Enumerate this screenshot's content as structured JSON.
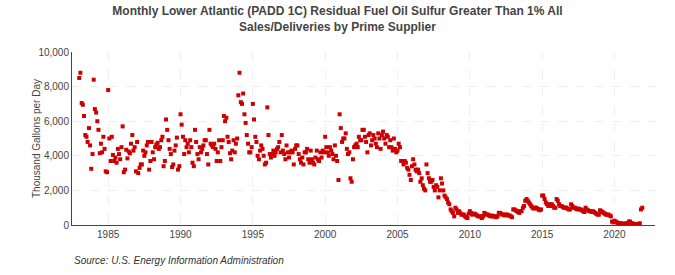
{
  "chart_data": {
    "type": "scatter",
    "title": "Monthly Lower Atlantic (PADD 1C) Residual Fuel Oil Sulfur Greater Than 1% All\nSales/Deliveries by Prime Supplier",
    "ylabel": "Thousand Gallons per Day",
    "annotations": [
      "Source: U.S. Energy Information Administration"
    ],
    "color": "#CC0000",
    "marker": "square",
    "grid": true,
    "xlim": [
      1982.5,
      2022.8
    ],
    "xticks": [
      1985,
      1990,
      1995,
      2000,
      2005,
      2010,
      2015,
      2020
    ],
    "ylim": [
      0,
      10000
    ],
    "yticks": [
      0,
      {
        "value": 2000,
        "label": "2,000"
      },
      {
        "value": 4000,
        "label": "4,000"
      },
      {
        "value": 6000,
        "label": "6,000"
      },
      {
        "value": 8000,
        "label": "8,000"
      },
      {
        "value": 10000,
        "label": "10,000"
      }
    ],
    "x": [
      1983.0,
      1983.08,
      1983.17,
      1983.25,
      1983.33,
      1983.42,
      1983.5,
      1983.58,
      1983.67,
      1983.75,
      1983.83,
      1983.92,
      1984.0,
      1984.08,
      1984.17,
      1984.25,
      1984.33,
      1984.42,
      1984.5,
      1984.58,
      1984.67,
      1984.75,
      1984.83,
      1984.92,
      1985.0,
      1985.08,
      1985.17,
      1985.25,
      1985.33,
      1985.42,
      1985.5,
      1985.58,
      1985.67,
      1985.75,
      1985.83,
      1985.92,
      1986.0,
      1986.08,
      1986.17,
      1986.25,
      1986.33,
      1986.42,
      1986.5,
      1986.58,
      1986.67,
      1986.75,
      1986.83,
      1986.92,
      1987.0,
      1987.08,
      1987.17,
      1987.25,
      1987.33,
      1987.42,
      1987.5,
      1987.58,
      1987.67,
      1987.75,
      1987.83,
      1987.92,
      1988.0,
      1988.08,
      1988.17,
      1988.25,
      1988.33,
      1988.42,
      1988.5,
      1988.58,
      1988.67,
      1988.75,
      1988.83,
      1988.92,
      1989.0,
      1989.08,
      1989.17,
      1989.25,
      1989.33,
      1989.42,
      1989.5,
      1989.58,
      1989.67,
      1989.75,
      1989.83,
      1989.92,
      1990.0,
      1990.08,
      1990.17,
      1990.25,
      1990.33,
      1990.42,
      1990.5,
      1990.58,
      1990.67,
      1990.75,
      1990.83,
      1990.92,
      1991.0,
      1991.08,
      1991.17,
      1991.25,
      1991.33,
      1991.42,
      1991.5,
      1991.58,
      1991.67,
      1991.75,
      1991.83,
      1991.92,
      1992.0,
      1992.08,
      1992.17,
      1992.25,
      1992.33,
      1992.42,
      1992.5,
      1992.58,
      1992.67,
      1992.75,
      1992.83,
      1992.92,
      1993.0,
      1993.08,
      1993.17,
      1993.25,
      1993.33,
      1993.42,
      1993.5,
      1993.58,
      1993.67,
      1993.75,
      1993.83,
      1993.92,
      1994.0,
      1994.08,
      1994.17,
      1994.25,
      1994.33,
      1994.42,
      1994.5,
      1994.58,
      1994.67,
      1994.75,
      1994.83,
      1994.92,
      1995.0,
      1995.08,
      1995.17,
      1995.25,
      1995.33,
      1995.42,
      1995.5,
      1995.58,
      1995.67,
      1995.75,
      1995.83,
      1995.92,
      1996.0,
      1996.08,
      1996.17,
      1996.25,
      1996.33,
      1996.42,
      1996.5,
      1996.58,
      1996.67,
      1996.75,
      1996.83,
      1996.92,
      1997.0,
      1997.08,
      1997.17,
      1997.25,
      1997.33,
      1997.42,
      1997.5,
      1997.58,
      1997.67,
      1997.75,
      1997.83,
      1997.92,
      1998.0,
      1998.08,
      1998.17,
      1998.25,
      1998.33,
      1998.42,
      1998.5,
      1998.58,
      1998.67,
      1998.75,
      1998.83,
      1998.92,
      1999.0,
      1999.08,
      1999.17,
      1999.25,
      1999.33,
      1999.42,
      1999.5,
      1999.58,
      1999.67,
      1999.75,
      1999.83,
      1999.92,
      2000.0,
      2000.08,
      2000.17,
      2000.25,
      2000.33,
      2000.42,
      2000.5,
      2000.58,
      2000.67,
      2000.75,
      2000.83,
      2000.92,
      2001.0,
      2001.08,
      2001.17,
      2001.25,
      2001.33,
      2001.42,
      2001.5,
      2001.58,
      2001.67,
      2001.75,
      2001.83,
      2001.92,
      2002.0,
      2002.08,
      2002.17,
      2002.25,
      2002.33,
      2002.42,
      2002.5,
      2002.58,
      2002.67,
      2002.75,
      2002.83,
      2002.92,
      2003.0,
      2003.08,
      2003.17,
      2003.25,
      2003.33,
      2003.42,
      2003.5,
      2003.58,
      2003.67,
      2003.75,
      2003.83,
      2003.92,
      2004.0,
      2004.08,
      2004.17,
      2004.25,
      2004.33,
      2004.42,
      2004.5,
      2004.58,
      2004.67,
      2004.75,
      2004.83,
      2004.92,
      2005.0,
      2005.08,
      2005.17,
      2005.25,
      2005.33,
      2005.42,
      2005.5,
      2005.58,
      2005.67,
      2005.75,
      2005.83,
      2005.92,
      2006.0,
      2006.08,
      2006.17,
      2006.25,
      2006.33,
      2006.42,
      2006.5,
      2006.58,
      2006.67,
      2006.75,
      2006.83,
      2006.92,
      2007.0,
      2007.08,
      2007.17,
      2007.25,
      2007.33,
      2007.42,
      2007.5,
      2007.58,
      2007.67,
      2007.75,
      2007.83,
      2007.92,
      2008.0,
      2008.08,
      2008.17,
      2008.25,
      2008.33,
      2008.42,
      2008.5,
      2008.58,
      2008.67,
      2008.75,
      2008.83,
      2008.92,
      2009.0,
      2009.08,
      2009.17,
      2009.25,
      2009.33,
      2009.42,
      2009.5,
      2009.58,
      2009.67,
      2009.75,
      2009.83,
      2009.92,
      2010.0,
      2010.08,
      2010.17,
      2010.25,
      2010.33,
      2010.42,
      2010.5,
      2010.58,
      2010.67,
      2010.75,
      2010.83,
      2010.92,
      2011.0,
      2011.08,
      2011.17,
      2011.25,
      2011.33,
      2011.42,
      2011.5,
      2011.58,
      2011.67,
      2011.75,
      2011.83,
      2011.92,
      2012.0,
      2012.08,
      2012.17,
      2012.25,
      2012.33,
      2012.42,
      2012.5,
      2012.58,
      2012.67,
      2012.75,
      2012.83,
      2012.92,
      2013.0,
      2013.08,
      2013.17,
      2013.25,
      2013.33,
      2013.42,
      2013.5,
      2013.58,
      2013.67,
      2013.75,
      2013.83,
      2013.92,
      2014.0,
      2014.08,
      2014.17,
      2014.25,
      2014.33,
      2014.42,
      2014.5,
      2014.58,
      2014.67,
      2014.75,
      2014.83,
      2014.92,
      2015.0,
      2015.08,
      2015.17,
      2015.25,
      2015.33,
      2015.42,
      2015.5,
      2015.58,
      2015.67,
      2015.75,
      2015.83,
      2015.92,
      2016.0,
      2016.08,
      2016.17,
      2016.25,
      2016.33,
      2016.42,
      2016.5,
      2016.58,
      2016.67,
      2016.75,
      2016.83,
      2016.92,
      2017.0,
      2017.08,
      2017.17,
      2017.25,
      2017.33,
      2017.42,
      2017.5,
      2017.58,
      2017.67,
      2017.75,
      2017.83,
      2017.92,
      2018.0,
      2018.08,
      2018.17,
      2018.25,
      2018.33,
      2018.42,
      2018.5,
      2018.58,
      2018.67,
      2018.75,
      2018.83,
      2018.92,
      2019.0,
      2019.08,
      2019.17,
      2019.25,
      2019.33,
      2019.42,
      2019.5,
      2019.58,
      2019.67,
      2019.75,
      2019.83,
      2019.92,
      2020.0,
      2020.08,
      2020.17,
      2020.25,
      2020.33,
      2020.42,
      2020.5,
      2020.58,
      2020.67,
      2020.75,
      2020.83,
      2020.92,
      2021.0,
      2021.08,
      2021.17,
      2021.25,
      2021.33,
      2021.42,
      2021.5,
      2021.58,
      2021.67,
      2021.75,
      2021.83,
      2021.92
    ],
    "values": [
      8500,
      8800,
      7050,
      6950,
      6300,
      5200,
      5100,
      4800,
      5600,
      4600,
      3250,
      4100,
      8400,
      6700,
      6500,
      6000,
      5500,
      4150,
      4700,
      4200,
      5100,
      4400,
      3100,
      3050,
      7800,
      5000,
      3700,
      5100,
      4050,
      3700,
      3900,
      3600,
      4400,
      4100,
      3800,
      4500,
      5700,
      3050,
      3200,
      4350,
      3850,
      4250,
      4150,
      4700,
      5200,
      4300,
      4500,
      3100,
      4800,
      3000,
      3300,
      3500,
      3500,
      4300,
      4000,
      4200,
      4600,
      4800,
      3200,
      3700,
      4800,
      4200,
      3800,
      4500,
      4650,
      4750,
      4400,
      4500,
      4900,
      5100,
      3400,
      3700,
      6100,
      5500,
      4900,
      4400,
      4100,
      3350,
      3500,
      4300,
      4600,
      5050,
      3200,
      3400,
      6400,
      5800,
      5100,
      4100,
      4900,
      4500,
      4700,
      4200,
      4900,
      4500,
      3600,
      3400,
      5500,
      4800,
      4100,
      3800,
      4500,
      4200,
      4400,
      4600,
      4900,
      4900,
      4100,
      3500,
      5500,
      4700,
      4600,
      4500,
      4700,
      4400,
      3700,
      4200,
      4900,
      3700,
      4500,
      4900,
      6300,
      6000,
      6200,
      5100,
      4800,
      4150,
      3800,
      4300,
      4900,
      4200,
      4700,
      5000,
      7500,
      8800,
      7100,
      7000,
      7600,
      6400,
      5900,
      5200,
      4700,
      4200,
      4200,
      4500,
      7000,
      6100,
      5100,
      4800,
      4000,
      3800,
      4300,
      4600,
      4400,
      4000,
      3500,
      3600,
      6800,
      5200,
      4100,
      3900,
      4100,
      4300,
      4000,
      4200,
      4400,
      4500,
      4800,
      4200,
      5200,
      4300,
      4100,
      3800,
      4600,
      4200,
      3900,
      4200,
      4300,
      4200,
      3500,
      4400,
      4600,
      4600,
      4100,
      3800,
      3600,
      3900,
      3500,
      4200,
      4200,
      4400,
      3800,
      3600,
      4300,
      3800,
      3600,
      3500,
      3900,
      4300,
      3800,
      3700,
      4200,
      3900,
      4300,
      4200,
      5100,
      4500,
      4200,
      4000,
      4500,
      4300,
      4100,
      3800,
      4600,
      4000,
      3700,
      2600,
      6400,
      5600,
      4800,
      5000,
      5000,
      5300,
      4400,
      4100,
      4200,
      2700,
      2500,
      3800,
      4500,
      4600,
      4700,
      4500,
      5100,
      4900,
      4900,
      5500,
      5500,
      5100,
      4800,
      4200,
      5200,
      5300,
      4600,
      4900,
      5200,
      5000,
      4700,
      4500,
      5300,
      5000,
      4400,
      5200,
      5400,
      5000,
      4700,
      5200,
      5100,
      4500,
      4900,
      4500,
      4300,
      5000,
      4400,
      4200,
      4300,
      4700,
      4500,
      3700,
      3700,
      3500,
      3700,
      3600,
      3300,
      3200,
      2900,
      2600,
      3400,
      3800,
      3500,
      3200,
      3100,
      3200,
      3000,
      2500,
      2700,
      2300,
      2100,
      2000,
      3500,
      3000,
      2700,
      2500,
      2500,
      2600,
      2200,
      2000,
      2300,
      2200,
      1600,
      2000,
      2700,
      2400,
      2000,
      1700,
      1600,
      1500,
      1300,
      1200,
      900,
      800,
      700,
      500,
      1000,
      900,
      700,
      800,
      700,
      600,
      600,
      600,
      500,
      450,
      400,
      650,
      800,
      700,
      600,
      650,
      650,
      600,
      550,
      500,
      500,
      500,
      400,
      500,
      700,
      650,
      600,
      600,
      550,
      500,
      550,
      500,
      500,
      500,
      450,
      500,
      700,
      700,
      650,
      600,
      600,
      550,
      600,
      600,
      550,
      550,
      500,
      450,
      900,
      900,
      850,
      800,
      750,
      700,
      800,
      800,
      1000,
      1100,
      1400,
      1500,
      1400,
      1300,
      1200,
      1100,
      1000,
      950,
      1000,
      1000,
      950,
      900,
      850,
      900,
      1700,
      1700,
      1500,
      1300,
      1200,
      1100,
      1200,
      1100,
      1200,
      1100,
      1000,
      1000,
      1500,
      1400,
      1200,
      1100,
      1100,
      1050,
      1000,
      1000,
      1000,
      950,
      900,
      900,
      1200,
      1100,
      1000,
      1000,
      950,
      900,
      950,
      900,
      900,
      850,
      800,
      750,
      1000,
      900,
      850,
      800,
      800,
      750,
      800,
      750,
      700,
      650,
      600,
      600,
      850,
      800,
      750,
      700,
      650,
      600,
      600,
      600,
      550,
      500,
      200,
      150,
      250,
      200,
      150,
      100,
      80,
      100,
      80,
      80,
      70,
      60,
      100,
      80,
      200,
      200,
      100,
      80,
      70,
      60,
      50,
      50,
      60,
      100,
      900,
      1000
    ]
  }
}
